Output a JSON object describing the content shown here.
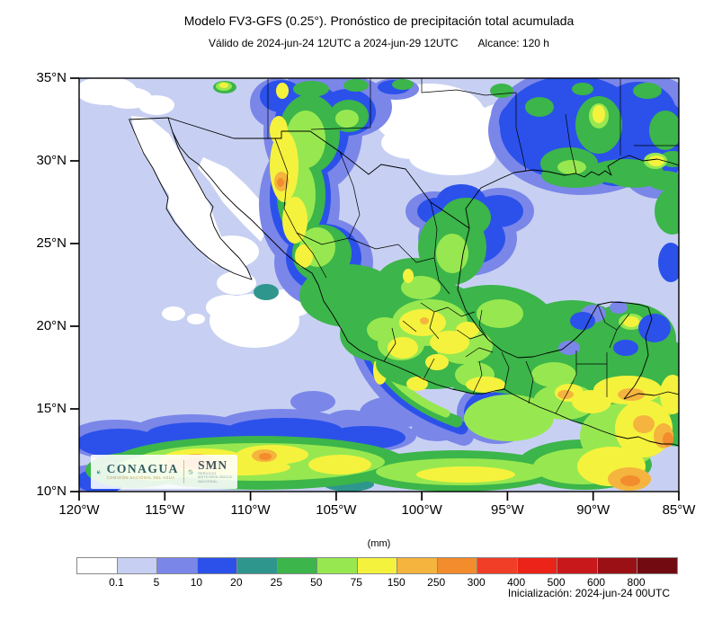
{
  "header": {
    "title": "Modelo FV3-GFS (0.25°). Pronóstico de precipitación total acumulada",
    "valid_range": "Válido de 2024-jun-24 12UTC a 2024-jun-29 12UTC",
    "forecast_length": "Alcance: 120 h"
  },
  "map": {
    "lat_ticks": [
      "35°N",
      "30°N",
      "25°N",
      "20°N",
      "15°N",
      "10°N"
    ],
    "lon_ticks": [
      "120°W",
      "115°W",
      "110°W",
      "105°W",
      "100°W",
      "95°W",
      "90°W",
      "85°W"
    ]
  },
  "logos": {
    "conagua_name": "CONAGUA",
    "conagua_subtext": "COMISIÓN NACIONAL DEL AGUA",
    "smn_name": "SMN",
    "smn_subtext_line1": "SERVICIO",
    "smn_subtext_line2": "METEOROLÓGICO",
    "smn_subtext_line3": "NACIONAL"
  },
  "colorbar": {
    "unit": "(mm)",
    "tick_labels": [
      "0.1",
      "5",
      "10",
      "20",
      "25",
      "50",
      "75",
      "150",
      "250",
      "300",
      "400",
      "500",
      "600",
      "800"
    ],
    "colors": [
      "#FFFFFF",
      "#C7D0F2",
      "#7B86E9",
      "#2B51EA",
      "#2F968E",
      "#3CB54A",
      "#97E850",
      "#F5F23D",
      "#F5B43E",
      "#F28C2C",
      "#F03E27",
      "#EB2318",
      "#C9181B",
      "#9B1014",
      "#720B11"
    ]
  },
  "footer": {
    "initialization": "Inicialización: 2024-jun-24 00UTC"
  }
}
